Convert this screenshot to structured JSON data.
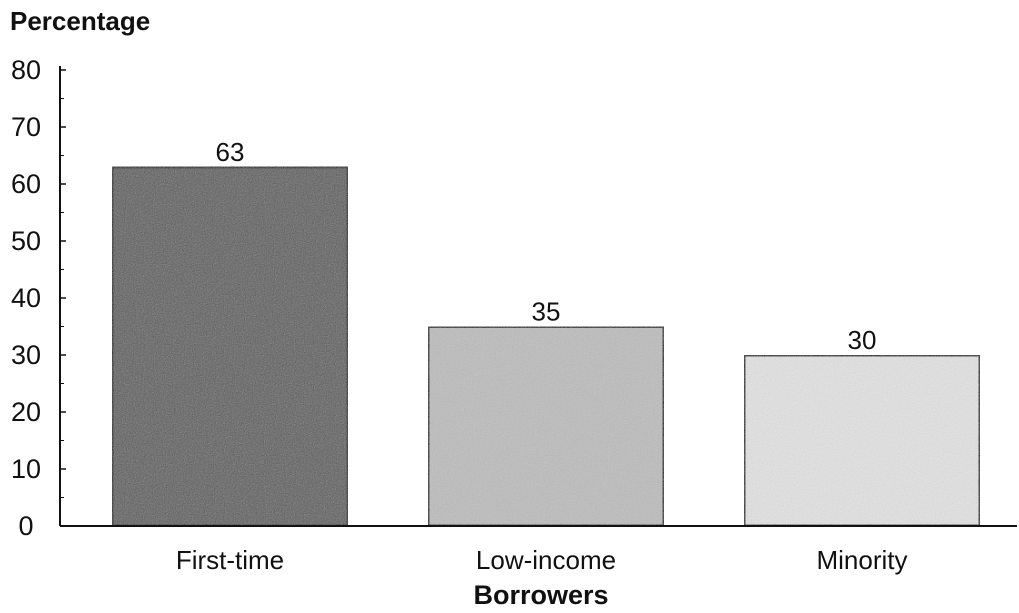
{
  "chart_data": {
    "type": "bar",
    "title": "",
    "ylabel": "Percentage",
    "xlabel": "Borrowers",
    "categories": [
      "First-time",
      "Low-income",
      "Minority"
    ],
    "values": [
      63,
      35,
      30
    ],
    "data_labels": [
      "63",
      "35",
      "30"
    ],
    "ylim": [
      0,
      80
    ],
    "yticks": [
      "0",
      "10",
      "20",
      "30",
      "40",
      "50",
      "60",
      "70",
      "80"
    ],
    "grid": false,
    "legend": "none",
    "bar_colors": [
      "#5c5c5c",
      "#bdbdbd",
      "#e3e3e3"
    ]
  }
}
